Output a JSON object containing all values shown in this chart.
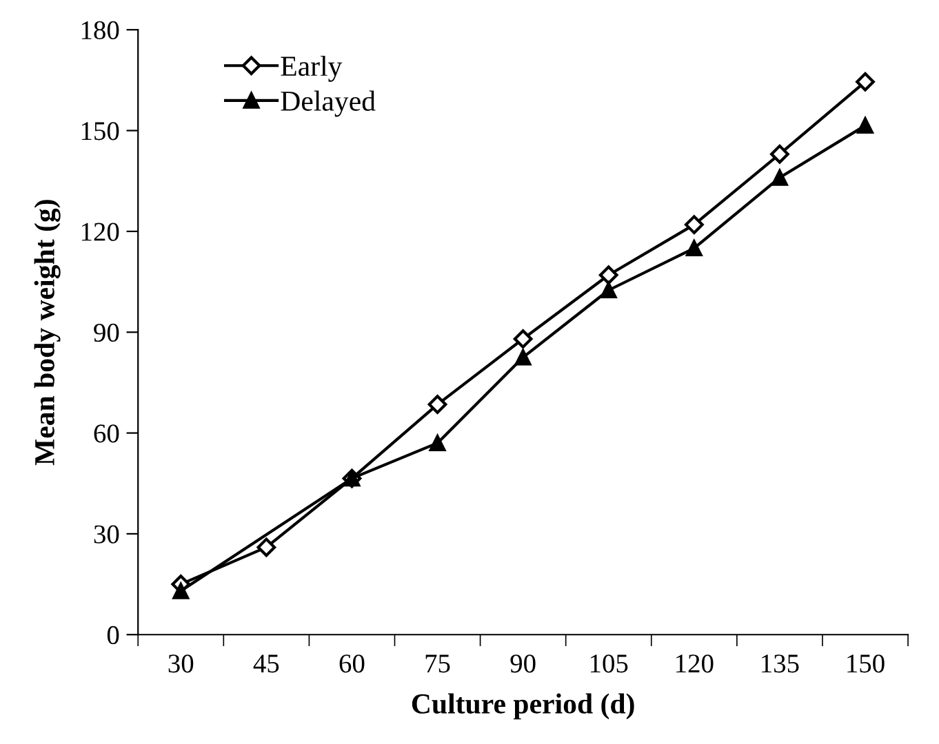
{
  "chart_data": {
    "type": "line",
    "xlabel": "Culture period (d)",
    "ylabel": "Mean body weight (g)",
    "categories": [
      "30",
      "45",
      "60",
      "75",
      "90",
      "105",
      "120",
      "135",
      "150"
    ],
    "series": [
      {
        "name": "Early",
        "color": "#000000",
        "marker": "diamond",
        "values": [
          15,
          26,
          46.5,
          68.5,
          88,
          107,
          122,
          143,
          164.5
        ]
      },
      {
        "name": "Delayed",
        "color": "#000000",
        "marker": "triangle",
        "values": [
          13,
          null,
          46.5,
          57,
          82.5,
          102.5,
          115,
          136,
          151.5
        ]
      }
    ],
    "ylim": [
      0,
      180
    ],
    "yticks": [
      0,
      30,
      60,
      90,
      120,
      150,
      180
    ],
    "grid": false,
    "legend": "top left"
  }
}
